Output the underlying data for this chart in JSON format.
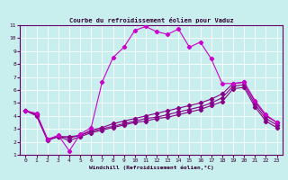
{
  "title": "Courbe du refroidissement éolien pour Vaduz",
  "xlabel": "Windchill (Refroidissement éolien,°C)",
  "bg_color": "#c8eeee",
  "grid_color": "#aadddd",
  "line_color1": "#cc00cc",
  "line_color2": "#880088",
  "xlim": [
    -0.5,
    23.5
  ],
  "ylim": [
    1,
    11
  ],
  "xticks": [
    0,
    1,
    2,
    3,
    4,
    5,
    6,
    7,
    8,
    9,
    10,
    11,
    12,
    13,
    14,
    15,
    16,
    17,
    18,
    19,
    20,
    21,
    22,
    23
  ],
  "yticks": [
    1,
    2,
    3,
    4,
    5,
    6,
    7,
    8,
    9,
    10,
    11
  ],
  "line1_x": [
    0,
    1,
    2,
    3,
    4,
    5,
    6,
    7,
    8,
    9,
    10,
    11,
    12,
    13,
    14,
    15,
    16,
    17,
    18,
    19,
    20,
    21,
    22,
    23
  ],
  "line1_y": [
    4.4,
    4.2,
    2.2,
    2.5,
    1.3,
    2.6,
    3.1,
    6.6,
    8.5,
    9.3,
    10.6,
    10.9,
    10.5,
    10.3,
    10.7,
    9.3,
    9.7,
    8.4,
    6.5,
    6.5,
    6.6,
    5.2,
    4.1,
    3.5
  ],
  "line2_x": [
    0,
    1,
    2,
    3,
    4,
    5,
    6,
    7,
    8,
    9,
    10,
    11,
    12,
    13,
    14,
    15,
    16,
    17,
    18,
    19,
    20,
    21,
    22,
    23
  ],
  "line2_y": [
    4.4,
    4.1,
    2.2,
    2.4,
    2.4,
    2.5,
    2.9,
    3.1,
    3.4,
    3.6,
    3.8,
    4.0,
    4.2,
    4.4,
    4.6,
    4.8,
    5.0,
    5.3,
    5.7,
    6.5,
    6.6,
    5.1,
    4.0,
    3.5
  ],
  "line3_x": [
    0,
    1,
    2,
    3,
    4,
    5,
    6,
    7,
    8,
    9,
    10,
    11,
    12,
    13,
    14,
    15,
    16,
    17,
    18,
    19,
    20,
    21,
    22,
    23
  ],
  "line3_y": [
    4.4,
    4.1,
    2.2,
    2.4,
    2.3,
    2.5,
    2.8,
    3.0,
    3.2,
    3.4,
    3.6,
    3.8,
    3.9,
    4.1,
    4.3,
    4.5,
    4.7,
    5.0,
    5.4,
    6.3,
    6.4,
    4.9,
    3.8,
    3.3
  ],
  "line4_x": [
    0,
    1,
    2,
    3,
    4,
    5,
    6,
    7,
    8,
    9,
    10,
    11,
    12,
    13,
    14,
    15,
    16,
    17,
    18,
    19,
    20,
    21,
    22,
    23
  ],
  "line4_y": [
    4.4,
    4.0,
    2.1,
    2.4,
    2.1,
    2.4,
    2.7,
    2.9,
    3.1,
    3.3,
    3.5,
    3.6,
    3.8,
    3.9,
    4.1,
    4.3,
    4.5,
    4.8,
    5.1,
    6.1,
    6.2,
    4.7,
    3.6,
    3.1
  ]
}
